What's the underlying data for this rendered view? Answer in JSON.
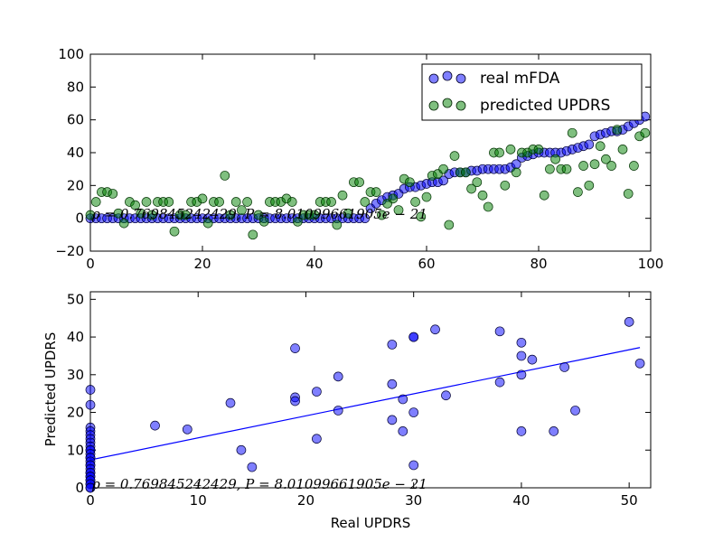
{
  "chart_data": [
    {
      "type": "scatter",
      "xlim": [
        0,
        100
      ],
      "ylim": [
        -20,
        100
      ],
      "xticks": [
        "0",
        "20",
        "40",
        "60",
        "80",
        "100"
      ],
      "yticks": [
        "−20",
        "0",
        "20",
        "40",
        "60",
        "80",
        "100"
      ],
      "legend_position": "top-right",
      "annotation": "ρ = 0.769845242429,  P = 8.01099661905e − 21",
      "series": [
        {
          "name": "real mFDA",
          "color": "#0000ff",
          "x": [
            0,
            1,
            2,
            3,
            4,
            5,
            6,
            7,
            8,
            9,
            10,
            11,
            12,
            13,
            14,
            15,
            16,
            17,
            18,
            19,
            20,
            21,
            22,
            23,
            24,
            25,
            26,
            27,
            28,
            29,
            30,
            31,
            32,
            33,
            34,
            35,
            36,
            37,
            38,
            39,
            40,
            41,
            42,
            43,
            44,
            45,
            46,
            47,
            48,
            49,
            50,
            51,
            52,
            53,
            54,
            55,
            56,
            57,
            58,
            59,
            60,
            61,
            62,
            63,
            64,
            65,
            66,
            67,
            68,
            69,
            70,
            71,
            72,
            73,
            74,
            75,
            76,
            77,
            78,
            79,
            80,
            81,
            82,
            83,
            84,
            85,
            86,
            87,
            88,
            89,
            90,
            91,
            92,
            93,
            94,
            95,
            96,
            97,
            98,
            99
          ],
          "y": [
            0,
            0,
            0,
            0,
            0,
            0,
            0,
            0,
            0,
            0,
            0,
            0,
            0,
            0,
            0,
            0,
            0,
            0,
            0,
            0,
            0,
            0,
            0,
            0,
            0,
            0,
            0,
            0,
            0,
            0,
            0,
            0,
            0,
            0,
            0,
            0,
            0,
            0,
            0,
            0,
            0,
            0,
            0,
            0,
            0,
            0,
            0,
            0,
            0,
            0,
            6,
            9,
            11,
            13,
            14,
            15,
            18,
            19,
            19,
            20,
            21,
            22,
            22,
            23,
            27,
            28,
            28,
            28,
            29,
            29,
            30,
            30,
            30,
            30,
            30,
            31,
            33,
            37,
            38,
            39,
            40,
            40,
            40,
            40,
            40,
            41,
            42,
            43,
            44,
            45,
            50,
            51,
            52,
            53,
            53,
            54,
            56,
            58,
            60,
            62
          ]
        },
        {
          "name": "predicted UPDRS",
          "color": "#008000",
          "x": [
            0,
            1,
            2,
            3,
            4,
            5,
            6,
            7,
            8,
            9,
            10,
            11,
            12,
            13,
            14,
            15,
            16,
            17,
            18,
            19,
            20,
            21,
            22,
            23,
            24,
            25,
            26,
            27,
            28,
            29,
            30,
            31,
            32,
            33,
            34,
            35,
            36,
            37,
            38,
            39,
            40,
            41,
            42,
            43,
            44,
            45,
            46,
            47,
            48,
            49,
            50,
            51,
            52,
            53,
            54,
            55,
            56,
            57,
            58,
            59,
            60,
            61,
            62,
            63,
            64,
            65,
            66,
            67,
            68,
            69,
            70,
            71,
            72,
            73,
            74,
            75,
            76,
            77,
            78,
            79,
            80,
            81,
            82,
            83,
            84,
            85,
            86,
            87,
            88,
            89,
            90,
            91,
            92,
            93,
            94,
            95,
            96,
            97,
            98,
            99
          ],
          "y": [
            2,
            10,
            16,
            16,
            15,
            3,
            -3,
            10,
            8,
            3,
            10,
            2,
            10,
            10,
            10,
            -8,
            2,
            2,
            10,
            10,
            12,
            -3,
            10,
            10,
            26,
            2,
            10,
            5,
            10,
            -10,
            2,
            -2,
            10,
            10,
            10,
            12,
            10,
            -2,
            2,
            2,
            2,
            10,
            10,
            10,
            -4,
            14,
            3,
            22,
            22,
            10,
            16,
            16,
            2,
            9,
            12,
            5,
            24,
            22,
            10,
            1,
            13,
            26,
            27,
            30,
            -4,
            38,
            28,
            28,
            18,
            22,
            14,
            7,
            40,
            40,
            20,
            42,
            28,
            40,
            40,
            42,
            42,
            14,
            30,
            36,
            30,
            30,
            52,
            16,
            32,
            20,
            33,
            44,
            36,
            32,
            54,
            42,
            15,
            32,
            50,
            52
          ]
        }
      ]
    },
    {
      "type": "scatter",
      "xlabel": "Real UPDRS",
      "ylabel": "Predicted UPDRS",
      "xlim": [
        0,
        52
      ],
      "ylim": [
        0,
        52
      ],
      "xticks": [
        "0",
        "10",
        "20",
        "30",
        "40",
        "50"
      ],
      "yticks": [
        "0",
        "10",
        "20",
        "30",
        "40",
        "50"
      ],
      "annotation": "ρ = 0.769845242429,  P = 8.01099661905e − 21",
      "points_color": "#0000ff",
      "fit_line": {
        "x": [
          0,
          51
        ],
        "y": [
          7.4,
          37.2
        ],
        "color": "#0000ff"
      },
      "points": {
        "x": [
          0,
          0,
          0,
          0,
          0,
          0,
          0,
          0,
          0,
          0,
          0,
          0,
          0,
          0,
          0,
          0,
          0,
          0,
          0,
          0,
          0,
          0,
          0,
          0,
          0,
          0,
          0,
          6,
          9,
          13,
          14,
          15,
          19,
          19,
          19,
          21,
          21,
          23,
          23,
          28,
          28,
          28,
          29,
          29,
          30,
          30,
          30,
          30,
          32,
          33,
          38,
          38,
          40,
          40,
          40,
          40,
          41,
          43,
          44,
          45,
          50,
          51
        ],
        "y": [
          26,
          22,
          16,
          15,
          14,
          13,
          12,
          11,
          10,
          10,
          9,
          8,
          8,
          7,
          6,
          6,
          5,
          4,
          4,
          3,
          3,
          2,
          2,
          1,
          1,
          0,
          0,
          16.5,
          15.5,
          22.5,
          10,
          5.5,
          37,
          24,
          23,
          25.5,
          13,
          29.5,
          20.5,
          38,
          27.5,
          18,
          23.5,
          15,
          40,
          40,
          20,
          6,
          42,
          24.5,
          41.5,
          28,
          38.5,
          35,
          30,
          15,
          34,
          15,
          32,
          20.5,
          44,
          33
        ]
      }
    }
  ]
}
